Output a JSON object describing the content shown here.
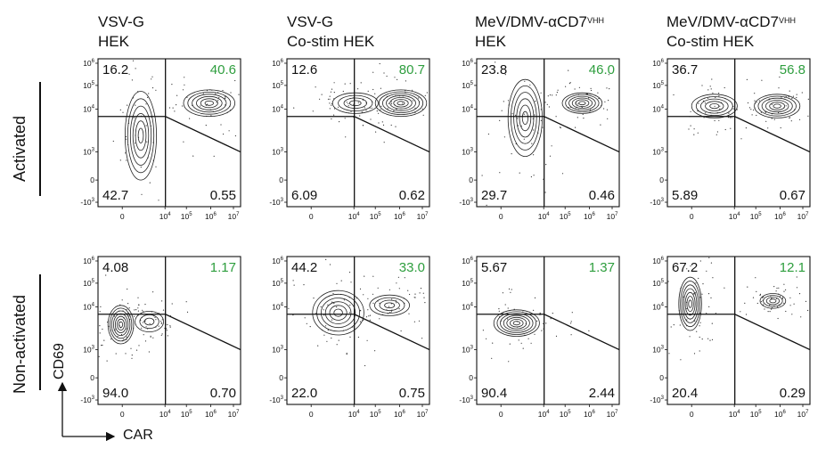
{
  "columns": [
    {
      "line1": "VSV-G",
      "line1_sup": "",
      "line2": "HEK"
    },
    {
      "line1": "VSV-G",
      "line1_sup": "",
      "line2": "Co-stim HEK"
    },
    {
      "line1": "MeV/DMV-αCD7",
      "line1_sup": "VHH",
      "line2": "HEK"
    },
    {
      "line1": "MeV/DMV-αCD7",
      "line1_sup": "VHH",
      "line2": "Co-stim HEK"
    }
  ],
  "rows": [
    {
      "label": "Activated"
    },
    {
      "label": "Non-activated"
    }
  ],
  "axes": {
    "y_label": "CD69",
    "x_label": "CAR",
    "y_ticks": [
      "10^6",
      "10^5",
      "10^4",
      "10^3",
      "0",
      "-10^3"
    ],
    "x_ticks": [
      "0",
      "10^4",
      "10^5",
      "10^6",
      "10^7"
    ]
  },
  "colors": {
    "positive_quadrant": "#2e9e3e",
    "ink": "#111111"
  },
  "panels": [
    [
      {
        "tl": "16.2",
        "tr": "40.6",
        "bl": "42.7",
        "br": "0.55"
      },
      {
        "tl": "12.6",
        "tr": "80.7",
        "bl": "6.09",
        "br": "0.62"
      },
      {
        "tl": "23.8",
        "tr": "46.0",
        "bl": "29.7",
        "br": "0.46"
      },
      {
        "tl": "36.7",
        "tr": "56.8",
        "bl": "5.89",
        "br": "0.67"
      }
    ],
    [
      {
        "tl": "4.08",
        "tr": "1.17",
        "bl": "94.0",
        "br": "0.70"
      },
      {
        "tl": "44.2",
        "tr": "33.0",
        "bl": "22.0",
        "br": "0.75"
      },
      {
        "tl": "5.67",
        "tr": "1.37",
        "bl": "90.4",
        "br": "2.44"
      },
      {
        "tl": "67.2",
        "tr": "12.1",
        "bl": "20.4",
        "br": "0.29"
      }
    ]
  ]
}
